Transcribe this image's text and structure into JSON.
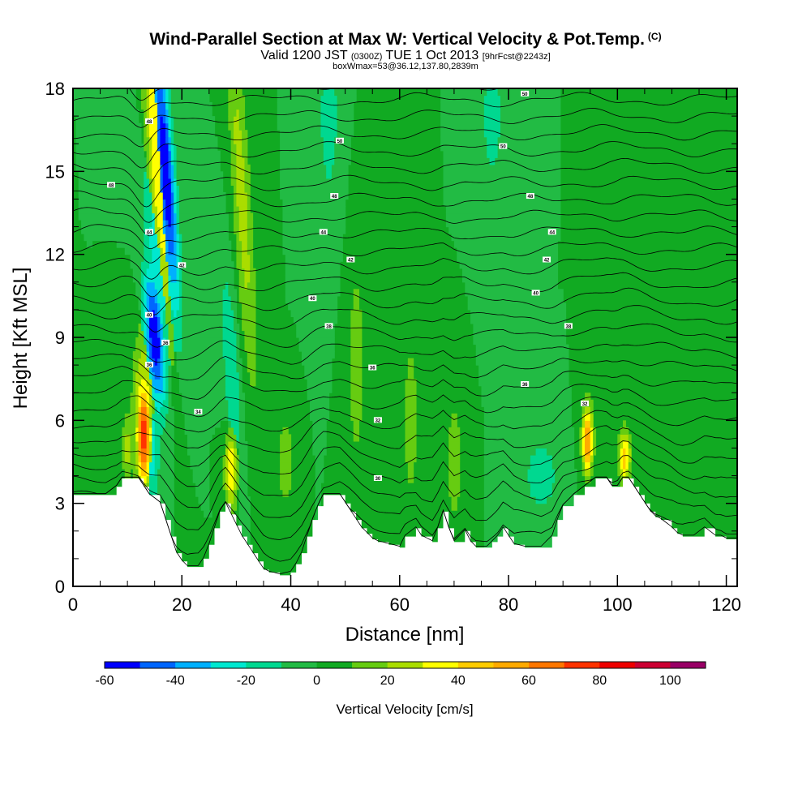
{
  "titles": {
    "main": "Wind-Parallel Section at Max W: Vertical Velocity & Pot.Temp.",
    "mark": "(C)",
    "valid_pre": "Valid 1200 JST",
    "valid_utc": "(0300Z)",
    "valid_date": "TUE 1 Oct 2013",
    "valid_fcst": "[9hrFcst@2243z]",
    "box": "boxWmax=53@36.12,137.80,2839m"
  },
  "chart_data": {
    "type": "heatmap",
    "xlabel": "Distance [nm]",
    "ylabel": "Height [Kft MSL]",
    "xlim": [
      0,
      122
    ],
    "ylim": [
      0,
      18
    ],
    "x_ticks": [
      0,
      20,
      40,
      60,
      80,
      100,
      120
    ],
    "y_ticks": [
      0,
      3,
      6,
      9,
      12,
      15,
      18
    ],
    "colorbar": {
      "label": "Vertical Velocity [cm/s]",
      "tick_values": [
        -60,
        -40,
        -20,
        0,
        20,
        40,
        60,
        80,
        100
      ],
      "range": [
        -60,
        110
      ],
      "step": 10,
      "colors": [
        "#0000ff",
        "#0066ff",
        "#00b0ff",
        "#00e8d0",
        "#00d890",
        "#22bb44",
        "#11aa22",
        "#66cc11",
        "#aadd00",
        "#ffff00",
        "#ffcc00",
        "#ffaa00",
        "#ff7700",
        "#ff3300",
        "#ee0000",
        "#cc0033",
        "#990066"
      ]
    },
    "background_w": 0,
    "terrain_kft": [
      [
        0,
        3.3
      ],
      [
        2,
        3.3
      ],
      [
        4,
        3.3
      ],
      [
        6,
        3.3
      ],
      [
        8,
        3.6
      ],
      [
        9,
        3.9
      ],
      [
        12,
        3.9
      ],
      [
        13,
        3.6
      ],
      [
        14,
        3.3
      ],
      [
        16,
        3.0
      ],
      [
        17,
        2.4
      ],
      [
        18,
        1.8
      ],
      [
        19,
        1.2
      ],
      [
        20,
        0.9
      ],
      [
        21,
        0.7
      ],
      [
        23,
        0.7
      ],
      [
        24,
        1.0
      ],
      [
        25,
        1.5
      ],
      [
        26,
        2.1
      ],
      [
        27,
        2.7
      ],
      [
        28,
        3.0
      ],
      [
        29,
        2.6
      ],
      [
        30,
        2.2
      ],
      [
        31,
        1.8
      ],
      [
        32,
        1.5
      ],
      [
        33,
        1.2
      ],
      [
        34,
        0.9
      ],
      [
        35,
        0.6
      ],
      [
        36,
        0.5
      ],
      [
        38,
        0.4
      ],
      [
        40,
        0.5
      ],
      [
        41,
        0.8
      ],
      [
        42,
        1.2
      ],
      [
        43,
        1.8
      ],
      [
        44,
        2.4
      ],
      [
        45,
        2.9
      ],
      [
        46,
        3.3
      ],
      [
        49,
        3.3
      ],
      [
        50,
        3.0
      ],
      [
        51,
        2.7
      ],
      [
        52,
        2.4
      ],
      [
        53,
        2.1
      ],
      [
        54,
        1.9
      ],
      [
        55,
        1.7
      ],
      [
        56,
        1.6
      ],
      [
        58,
        1.5
      ],
      [
        60,
        1.4
      ],
      [
        61,
        1.8
      ],
      [
        63,
        2.1
      ],
      [
        64,
        1.8
      ],
      [
        66,
        1.6
      ],
      [
        67,
        2.1
      ],
      [
        68,
        2.7
      ],
      [
        69,
        2.1
      ],
      [
        70,
        1.6
      ],
      [
        72,
        2.0
      ],
      [
        73,
        1.6
      ],
      [
        74,
        1.4
      ],
      [
        76,
        1.4
      ],
      [
        77,
        1.6
      ],
      [
        78,
        1.8
      ],
      [
        79,
        2.1
      ],
      [
        80,
        1.8
      ],
      [
        81,
        1.5
      ],
      [
        83,
        1.4
      ],
      [
        86,
        1.4
      ],
      [
        88,
        1.8
      ],
      [
        89,
        2.4
      ],
      [
        90,
        2.9
      ],
      [
        92,
        3.3
      ],
      [
        94,
        3.6
      ],
      [
        96,
        3.9
      ],
      [
        98,
        3.9
      ],
      [
        99,
        3.6
      ],
      [
        100,
        3.6
      ],
      [
        101,
        3.9
      ],
      [
        102,
        3.9
      ],
      [
        103,
        3.6
      ],
      [
        104,
        3.3
      ],
      [
        105,
        3.0
      ],
      [
        106,
        2.7
      ],
      [
        107,
        2.5
      ],
      [
        108,
        2.4
      ],
      [
        110,
        2.1
      ],
      [
        111,
        1.9
      ],
      [
        112,
        1.8
      ],
      [
        114,
        1.8
      ],
      [
        116,
        2.1
      ],
      [
        118,
        1.8
      ],
      [
        119,
        1.8
      ],
      [
        120,
        1.7
      ],
      [
        122,
        1.7
      ]
    ],
    "w_features": [
      {
        "x": 17.0,
        "xw": 1.1,
        "y": 15.0,
        "yw": 3.5,
        "x_lean": -0.35,
        "w": -60
      },
      {
        "x": 15.0,
        "xw": 1.2,
        "y": 9.0,
        "yw": 1.8,
        "x_lean": -0.35,
        "w": -60
      },
      {
        "x": 15.5,
        "xw": 1.6,
        "y": 11.5,
        "yw": 3.0,
        "x_lean": -0.35,
        "w": -25
      },
      {
        "x": 15.5,
        "xw": 1.3,
        "y": 15.5,
        "yw": 4.5,
        "x_lean": -0.35,
        "w": 40
      },
      {
        "x": 13.0,
        "xw": 0.9,
        "y": 5.5,
        "yw": 1.3,
        "x_lean": 0,
        "w": 80
      },
      {
        "x": 13.0,
        "xw": 1.4,
        "y": 6.0,
        "yw": 2.2,
        "x_lean": 0,
        "w": 40
      },
      {
        "x": 14.5,
        "xw": 1.0,
        "y": 5.0,
        "yw": 1.5,
        "x_lean": 0,
        "w": -25
      },
      {
        "x": 10.0,
        "xw": 0.7,
        "y": 5.0,
        "yw": 1.0,
        "x_lean": 0,
        "w": 25
      },
      {
        "x": 31.0,
        "xw": 1.2,
        "y": 14.0,
        "yw": 5.0,
        "x_lean": -0.3,
        "w": 25
      },
      {
        "x": 29.0,
        "xw": 1.0,
        "y": 8.0,
        "yw": 2.5,
        "x_lean": -0.3,
        "w": -20
      },
      {
        "x": 29.0,
        "xw": 0.8,
        "y": 4.2,
        "yw": 1.0,
        "x_lean": 0,
        "w": 40
      },
      {
        "x": 94.5,
        "xw": 0.7,
        "y": 5.3,
        "yw": 0.9,
        "x_lean": 0,
        "w": 60
      },
      {
        "x": 101.3,
        "xw": 0.8,
        "y": 4.7,
        "yw": 0.7,
        "x_lean": 0,
        "w": 45
      },
      {
        "x": 47.0,
        "xw": 1.5,
        "y": 17.0,
        "yw": 2.5,
        "x_lean": 0,
        "w": -15
      },
      {
        "x": 77.0,
        "xw": 1.5,
        "y": 17.0,
        "yw": 2.0,
        "x_lean": 0,
        "w": -15
      },
      {
        "x": 52.0,
        "xw": 1.2,
        "y": 8.0,
        "yw": 3.0,
        "x_lean": 0,
        "w": 15
      },
      {
        "x": 62.0,
        "xw": 1.2,
        "y": 6.0,
        "yw": 2.5,
        "x_lean": 0,
        "w": 15
      },
      {
        "x": 70.0,
        "xw": 1.0,
        "y": 4.5,
        "yw": 1.5,
        "x_lean": 0,
        "w": 20
      },
      {
        "x": 86.0,
        "xw": 2.0,
        "y": 4.0,
        "yw": 0.8,
        "x_lean": 0,
        "w": -20
      },
      {
        "x": 39.0,
        "xw": 1.0,
        "y": 4.5,
        "yw": 1.0,
        "x_lean": 0,
        "w": 20
      },
      {
        "x": 4.0,
        "xw": 2.0,
        "y": 4.5,
        "yw": 1.0,
        "x_lean": 0,
        "w": 10
      },
      {
        "x": 115.0,
        "xw": 2.0,
        "y": 14.0,
        "yw": 3.0,
        "x_lean": 0,
        "w": 10
      }
    ],
    "theta_contours": {
      "count": 28,
      "base_kft": 2.0,
      "spacing_kft": 0.6,
      "labels": [
        {
          "text": "50",
          "x": 83,
          "y": 17.8
        },
        {
          "text": "48",
          "x": 14,
          "y": 16.8
        },
        {
          "text": "50",
          "x": 49,
          "y": 16.1
        },
        {
          "text": "50",
          "x": 79,
          "y": 15.9
        },
        {
          "text": "48",
          "x": 7,
          "y": 14.5
        },
        {
          "text": "48",
          "x": 48,
          "y": 14.1
        },
        {
          "text": "48",
          "x": 84,
          "y": 14.1
        },
        {
          "text": "44",
          "x": 14,
          "y": 12.8
        },
        {
          "text": "44",
          "x": 46,
          "y": 12.8
        },
        {
          "text": "44",
          "x": 88,
          "y": 12.8
        },
        {
          "text": "42",
          "x": 20,
          "y": 11.6
        },
        {
          "text": "42",
          "x": 51,
          "y": 11.8
        },
        {
          "text": "42",
          "x": 87,
          "y": 11.8
        },
        {
          "text": "40",
          "x": 44,
          "y": 10.4
        },
        {
          "text": "40",
          "x": 85,
          "y": 10.6
        },
        {
          "text": "40",
          "x": 14,
          "y": 9.8
        },
        {
          "text": "38",
          "x": 47,
          "y": 9.4
        },
        {
          "text": "38",
          "x": 91,
          "y": 9.4
        },
        {
          "text": "36",
          "x": 17,
          "y": 8.8
        },
        {
          "text": "36",
          "x": 14,
          "y": 8.0
        },
        {
          "text": "36",
          "x": 55,
          "y": 7.9
        },
        {
          "text": "36",
          "x": 83,
          "y": 7.3
        },
        {
          "text": "34",
          "x": 23,
          "y": 6.3
        },
        {
          "text": "32",
          "x": 56,
          "y": 6.0
        },
        {
          "text": "32",
          "x": 94,
          "y": 6.6
        },
        {
          "text": "30",
          "x": 56,
          "y": 3.9
        }
      ]
    }
  }
}
